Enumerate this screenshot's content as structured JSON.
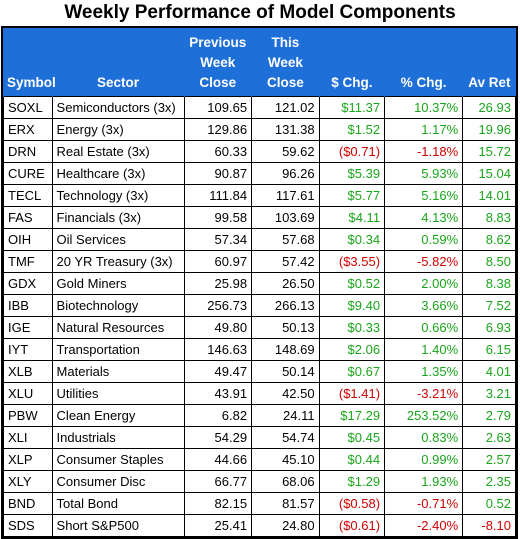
{
  "title": "Weekly Performance of Model Components",
  "headers": {
    "symbol": "Symbol",
    "sector": "Sector",
    "previous": [
      "Previous",
      "Week",
      "Close"
    ],
    "this": [
      "This",
      "Week",
      "Close"
    ],
    "chg": "$ Chg.",
    "pct": "% Chg.",
    "avret": "Av Ret"
  },
  "colors": {
    "header_bg": "#1f6fd8",
    "positive": "#1aa61a",
    "negative": "#d10000"
  },
  "rows": [
    {
      "symbol": "SOXL",
      "sector": "Semiconductors (3x)",
      "prev": "109.65",
      "this": "121.02",
      "chg": "$11.37",
      "pct": "10.37%",
      "av": "26.93",
      "dir": "pos"
    },
    {
      "symbol": "ERX",
      "sector": "Energy (3x)",
      "prev": "129.86",
      "this": "131.38",
      "chg": "$1.52",
      "pct": "1.17%",
      "av": "19.96",
      "dir": "pos"
    },
    {
      "symbol": "DRN",
      "sector": "Real Estate (3x)",
      "prev": "60.33",
      "this": "59.62",
      "chg": "($0.71)",
      "pct": "-1.18%",
      "av": "15.72",
      "dir": "neg"
    },
    {
      "symbol": "CURE",
      "sector": "Healthcare (3x)",
      "prev": "90.87",
      "this": "96.26",
      "chg": "$5.39",
      "pct": "5.93%",
      "av": "15.04",
      "dir": "pos"
    },
    {
      "symbol": "TECL",
      "sector": "Technology (3x)",
      "prev": "111.84",
      "this": "117.61",
      "chg": "$5.77",
      "pct": "5.16%",
      "av": "14.01",
      "dir": "pos"
    },
    {
      "symbol": "FAS",
      "sector": "Financials (3x)",
      "prev": "99.58",
      "this": "103.69",
      "chg": "$4.11",
      "pct": "4.13%",
      "av": "8.83",
      "dir": "pos"
    },
    {
      "symbol": "OIH",
      "sector": "Oil Services",
      "prev": "57.34",
      "this": "57.68",
      "chg": "$0.34",
      "pct": "0.59%",
      "av": "8.62",
      "dir": "pos"
    },
    {
      "symbol": "TMF",
      "sector": "20 YR Treasury (3x)",
      "prev": "60.97",
      "this": "57.42",
      "chg": "($3.55)",
      "pct": "-5.82%",
      "av": "8.50",
      "dir": "neg"
    },
    {
      "symbol": "GDX",
      "sector": "Gold Miners",
      "prev": "25.98",
      "this": "26.50",
      "chg": "$0.52",
      "pct": "2.00%",
      "av": "8.38",
      "dir": "pos"
    },
    {
      "symbol": "IBB",
      "sector": "Biotechnology",
      "prev": "256.73",
      "this": "266.13",
      "chg": "$9.40",
      "pct": "3.66%",
      "av": "7.52",
      "dir": "pos"
    },
    {
      "symbol": "IGE",
      "sector": "Natural Resources",
      "prev": "49.80",
      "this": "50.13",
      "chg": "$0.33",
      "pct": "0.66%",
      "av": "6.93",
      "dir": "pos"
    },
    {
      "symbol": "IYT",
      "sector": "Transportation",
      "prev": "146.63",
      "this": "148.69",
      "chg": "$2.06",
      "pct": "1.40%",
      "av": "6.15",
      "dir": "pos"
    },
    {
      "symbol": "XLB",
      "sector": "Materials",
      "prev": "49.47",
      "this": "50.14",
      "chg": "$0.67",
      "pct": "1.35%",
      "av": "4.01",
      "dir": "pos"
    },
    {
      "symbol": "XLU",
      "sector": "Utilities",
      "prev": "43.91",
      "this": "42.50",
      "chg": "($1.41)",
      "pct": "-3.21%",
      "av": "3.21",
      "dir": "neg"
    },
    {
      "symbol": "PBW",
      "sector": "Clean Energy",
      "prev": "6.82",
      "this": "24.11",
      "chg": "$17.29",
      "pct": "253.52%",
      "av": "2.79",
      "dir": "pos"
    },
    {
      "symbol": "XLI",
      "sector": "Industrials",
      "prev": "54.29",
      "this": "54.74",
      "chg": "$0.45",
      "pct": "0.83%",
      "av": "2.63",
      "dir": "pos"
    },
    {
      "symbol": "XLP",
      "sector": "Consumer Staples",
      "prev": "44.66",
      "this": "45.10",
      "chg": "$0.44",
      "pct": "0.99%",
      "av": "2.57",
      "dir": "pos"
    },
    {
      "symbol": "XLY",
      "sector": "Consumer Disc",
      "prev": "66.77",
      "this": "68.06",
      "chg": "$1.29",
      "pct": "1.93%",
      "av": "2.35",
      "dir": "pos"
    },
    {
      "symbol": "BND",
      "sector": "Total Bond",
      "prev": "82.15",
      "this": "81.57",
      "chg": "($0.58)",
      "pct": "-0.71%",
      "av": "0.52",
      "dir": "neg"
    },
    {
      "symbol": "SDS",
      "sector": "Short S&P500",
      "prev": "25.41",
      "this": "24.80",
      "chg": "($0.61)",
      "pct": "-2.40%",
      "av": "-8.10",
      "dir": "neg"
    }
  ]
}
